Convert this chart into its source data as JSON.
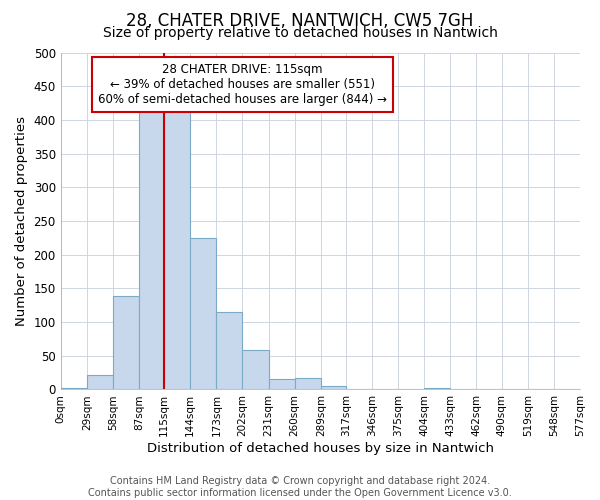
{
  "title": "28, CHATER DRIVE, NANTWICH, CW5 7GH",
  "subtitle": "Size of property relative to detached houses in Nantwich",
  "xlabel": "Distribution of detached houses by size in Nantwich",
  "ylabel": "Number of detached properties",
  "footer_line1": "Contains HM Land Registry data © Crown copyright and database right 2024.",
  "footer_line2": "Contains public sector information licensed under the Open Government Licence v3.0.",
  "annotation_line1": "28 CHATER DRIVE: 115sqm",
  "annotation_line2": "← 39% of detached houses are smaller (551)",
  "annotation_line3": "60% of semi-detached houses are larger (844) →",
  "bin_edges": [
    0,
    29,
    58,
    87,
    115,
    144,
    173,
    202,
    231,
    260,
    289,
    317,
    346,
    375,
    404,
    433,
    462,
    490,
    519,
    548,
    577
  ],
  "bar_heights": [
    2,
    22,
    138,
    415,
    420,
    225,
    115,
    58,
    15,
    17,
    5,
    1,
    1,
    0,
    2,
    0,
    1,
    0,
    1,
    0
  ],
  "bar_color": "#c8d8ec",
  "bar_edge_color": "#7aaac8",
  "vline_color": "#cc0000",
  "vline_x": 115,
  "ylim": [
    0,
    500
  ],
  "xlim": [
    0,
    577
  ],
  "tick_labels": [
    "0sqm",
    "29sqm",
    "58sqm",
    "87sqm",
    "115sqm",
    "144sqm",
    "173sqm",
    "202sqm",
    "231sqm",
    "260sqm",
    "289sqm",
    "317sqm",
    "346sqm",
    "375sqm",
    "404sqm",
    "433sqm",
    "462sqm",
    "490sqm",
    "519sqm",
    "548sqm",
    "577sqm"
  ],
  "background_color": "#ffffff",
  "plot_bg_color": "#ffffff",
  "grid_color": "#c8d0dc",
  "title_fontsize": 12,
  "subtitle_fontsize": 10,
  "axis_label_fontsize": 9.5,
  "tick_fontsize": 7.5,
  "annotation_fontsize": 8.5,
  "footer_fontsize": 7
}
